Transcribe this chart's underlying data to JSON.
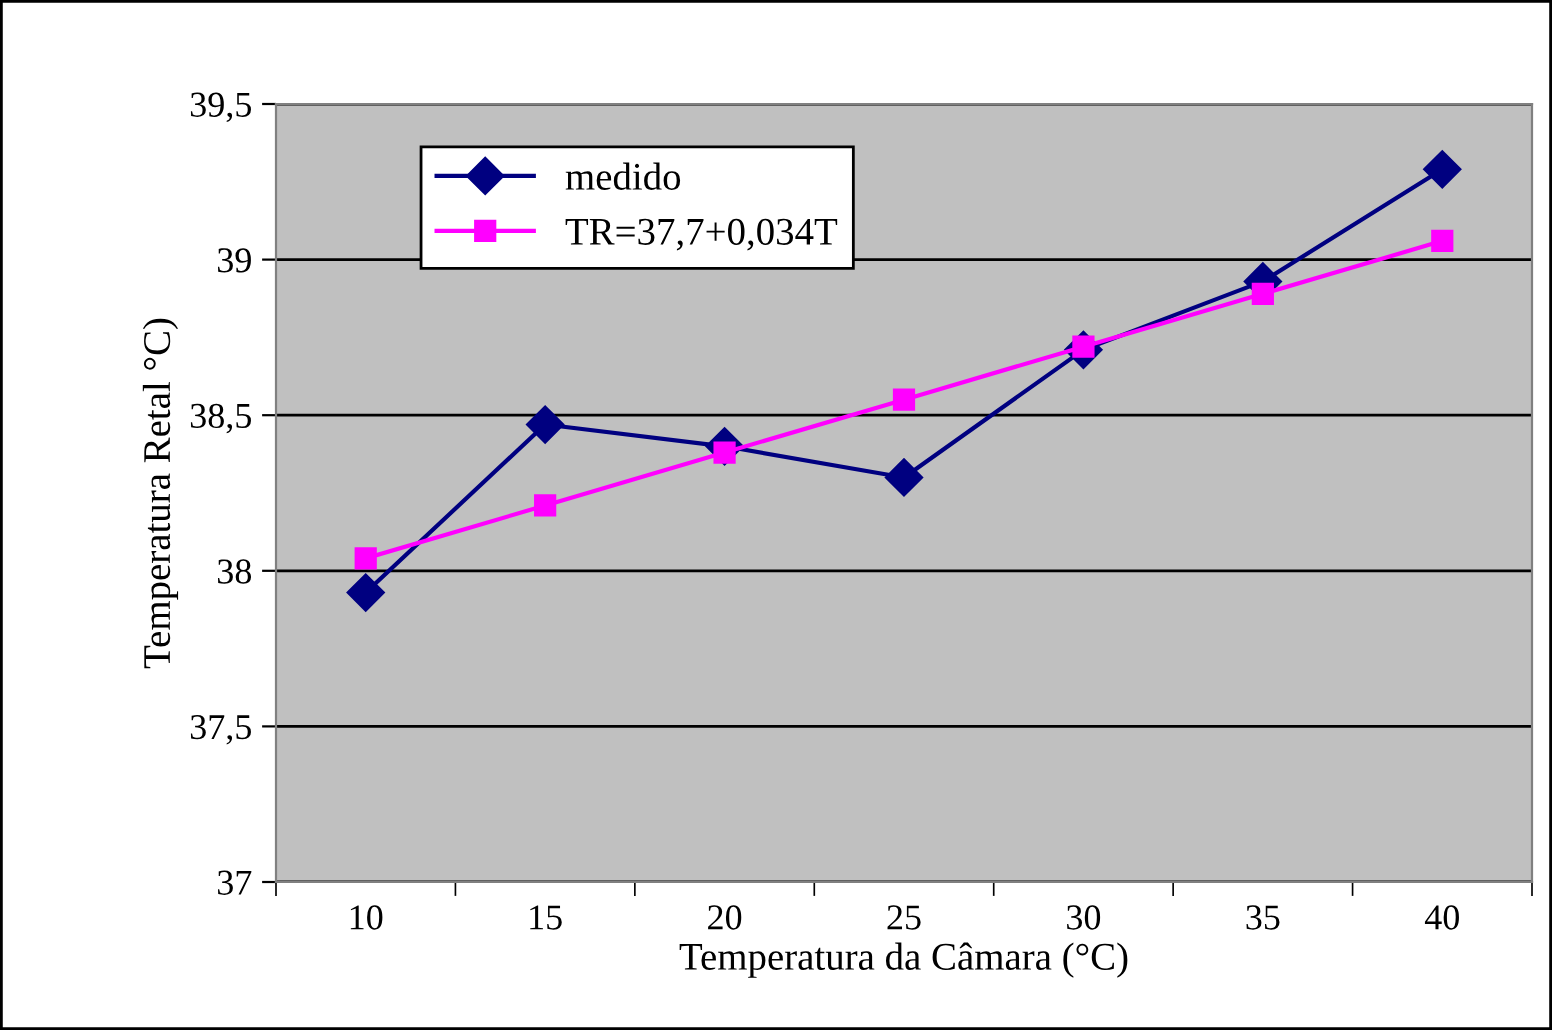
{
  "chart_data": {
    "type": "line",
    "xlabel": "Temperatura da Câmara (°C)",
    "ylabel": "Temperatura Retal °C)",
    "categories": [
      "10",
      "15",
      "20",
      "25",
      "30",
      "35",
      "40"
    ],
    "series": [
      {
        "name": "medido",
        "color": "#000080",
        "marker": "diamond",
        "values": [
          37.93,
          38.47,
          38.4,
          38.3,
          38.71,
          38.93,
          39.29
        ]
      },
      {
        "name": "TR=37,7+0,034T",
        "color": "#ff00ff",
        "marker": "square",
        "values": [
          38.04,
          38.21,
          38.38,
          38.55,
          38.72,
          38.89,
          39.06
        ]
      }
    ],
    "ylim": [
      37,
      39.5
    ],
    "yticks": [
      37,
      {
        "value": 37.5,
        "label": "37,5"
      },
      38,
      {
        "value": 38.5,
        "label": "38,5"
      },
      39,
      {
        "value": 39.5,
        "label": "39,5"
      }
    ],
    "grid": "y",
    "legend": "top left",
    "line_style": "solid"
  }
}
